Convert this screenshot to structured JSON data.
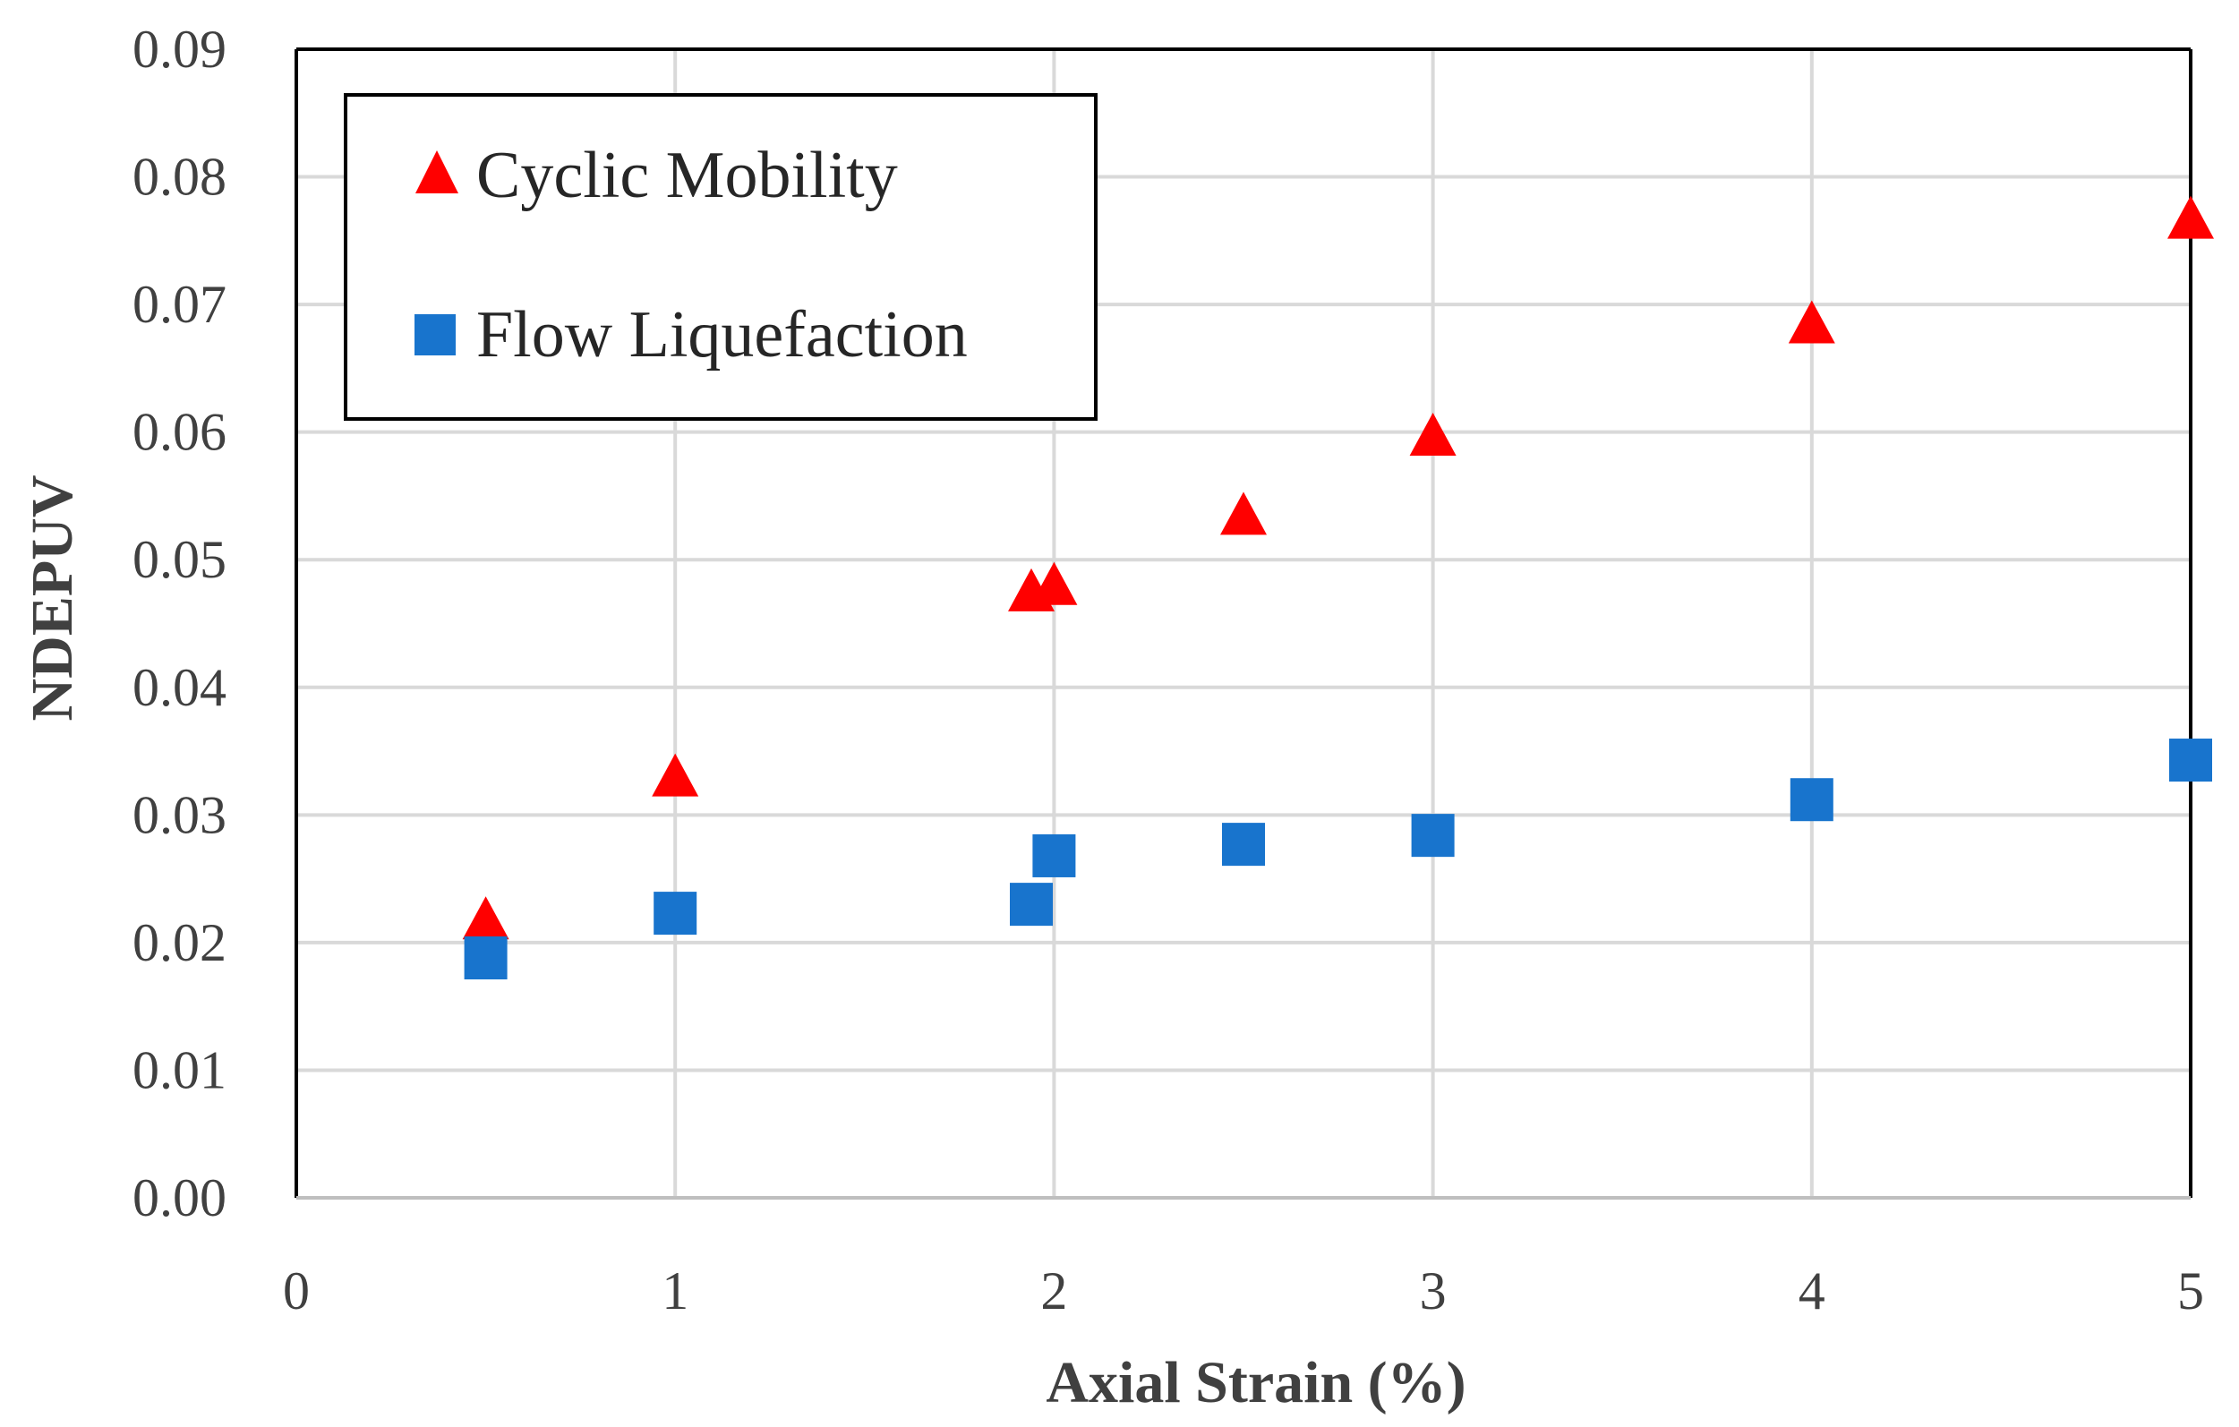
{
  "chart_data": {
    "type": "scatter",
    "title": "",
    "xlabel": "Axial Strain (%)",
    "ylabel": "NDEPUV",
    "xlim": [
      0,
      5
    ],
    "ylim": [
      0,
      0.09
    ],
    "x_ticks": [
      "0",
      "1",
      "2",
      "3",
      "4",
      "5"
    ],
    "y_ticks": [
      "0.00",
      "0.01",
      "0.02",
      "0.03",
      "0.04",
      "0.05",
      "0.06",
      "0.07",
      "0.08",
      "0.09"
    ],
    "grid": true,
    "legend_position": "top-left",
    "series": [
      {
        "name": "Cyclic Mobility",
        "marker": "triangle",
        "color": "#ff0000",
        "points": [
          {
            "x": 0.5,
            "y": 0.0218
          },
          {
            "x": 1.0,
            "y": 0.033
          },
          {
            "x": 1.94,
            "y": 0.0475
          },
          {
            "x": 2.0,
            "y": 0.048
          },
          {
            "x": 2.5,
            "y": 0.0535
          },
          {
            "x": 3.0,
            "y": 0.0597
          },
          {
            "x": 4.0,
            "y": 0.0685
          },
          {
            "x": 5.0,
            "y": 0.0767
          }
        ]
      },
      {
        "name": "Flow Liquefaction",
        "marker": "square",
        "color": "#1874cd",
        "points": [
          {
            "x": 0.5,
            "y": 0.0188
          },
          {
            "x": 1.0,
            "y": 0.0223
          },
          {
            "x": 1.94,
            "y": 0.023
          },
          {
            "x": 2.0,
            "y": 0.0268
          },
          {
            "x": 2.5,
            "y": 0.0277
          },
          {
            "x": 3.0,
            "y": 0.0284
          },
          {
            "x": 4.0,
            "y": 0.0312
          },
          {
            "x": 5.0,
            "y": 0.0343
          }
        ]
      }
    ]
  }
}
